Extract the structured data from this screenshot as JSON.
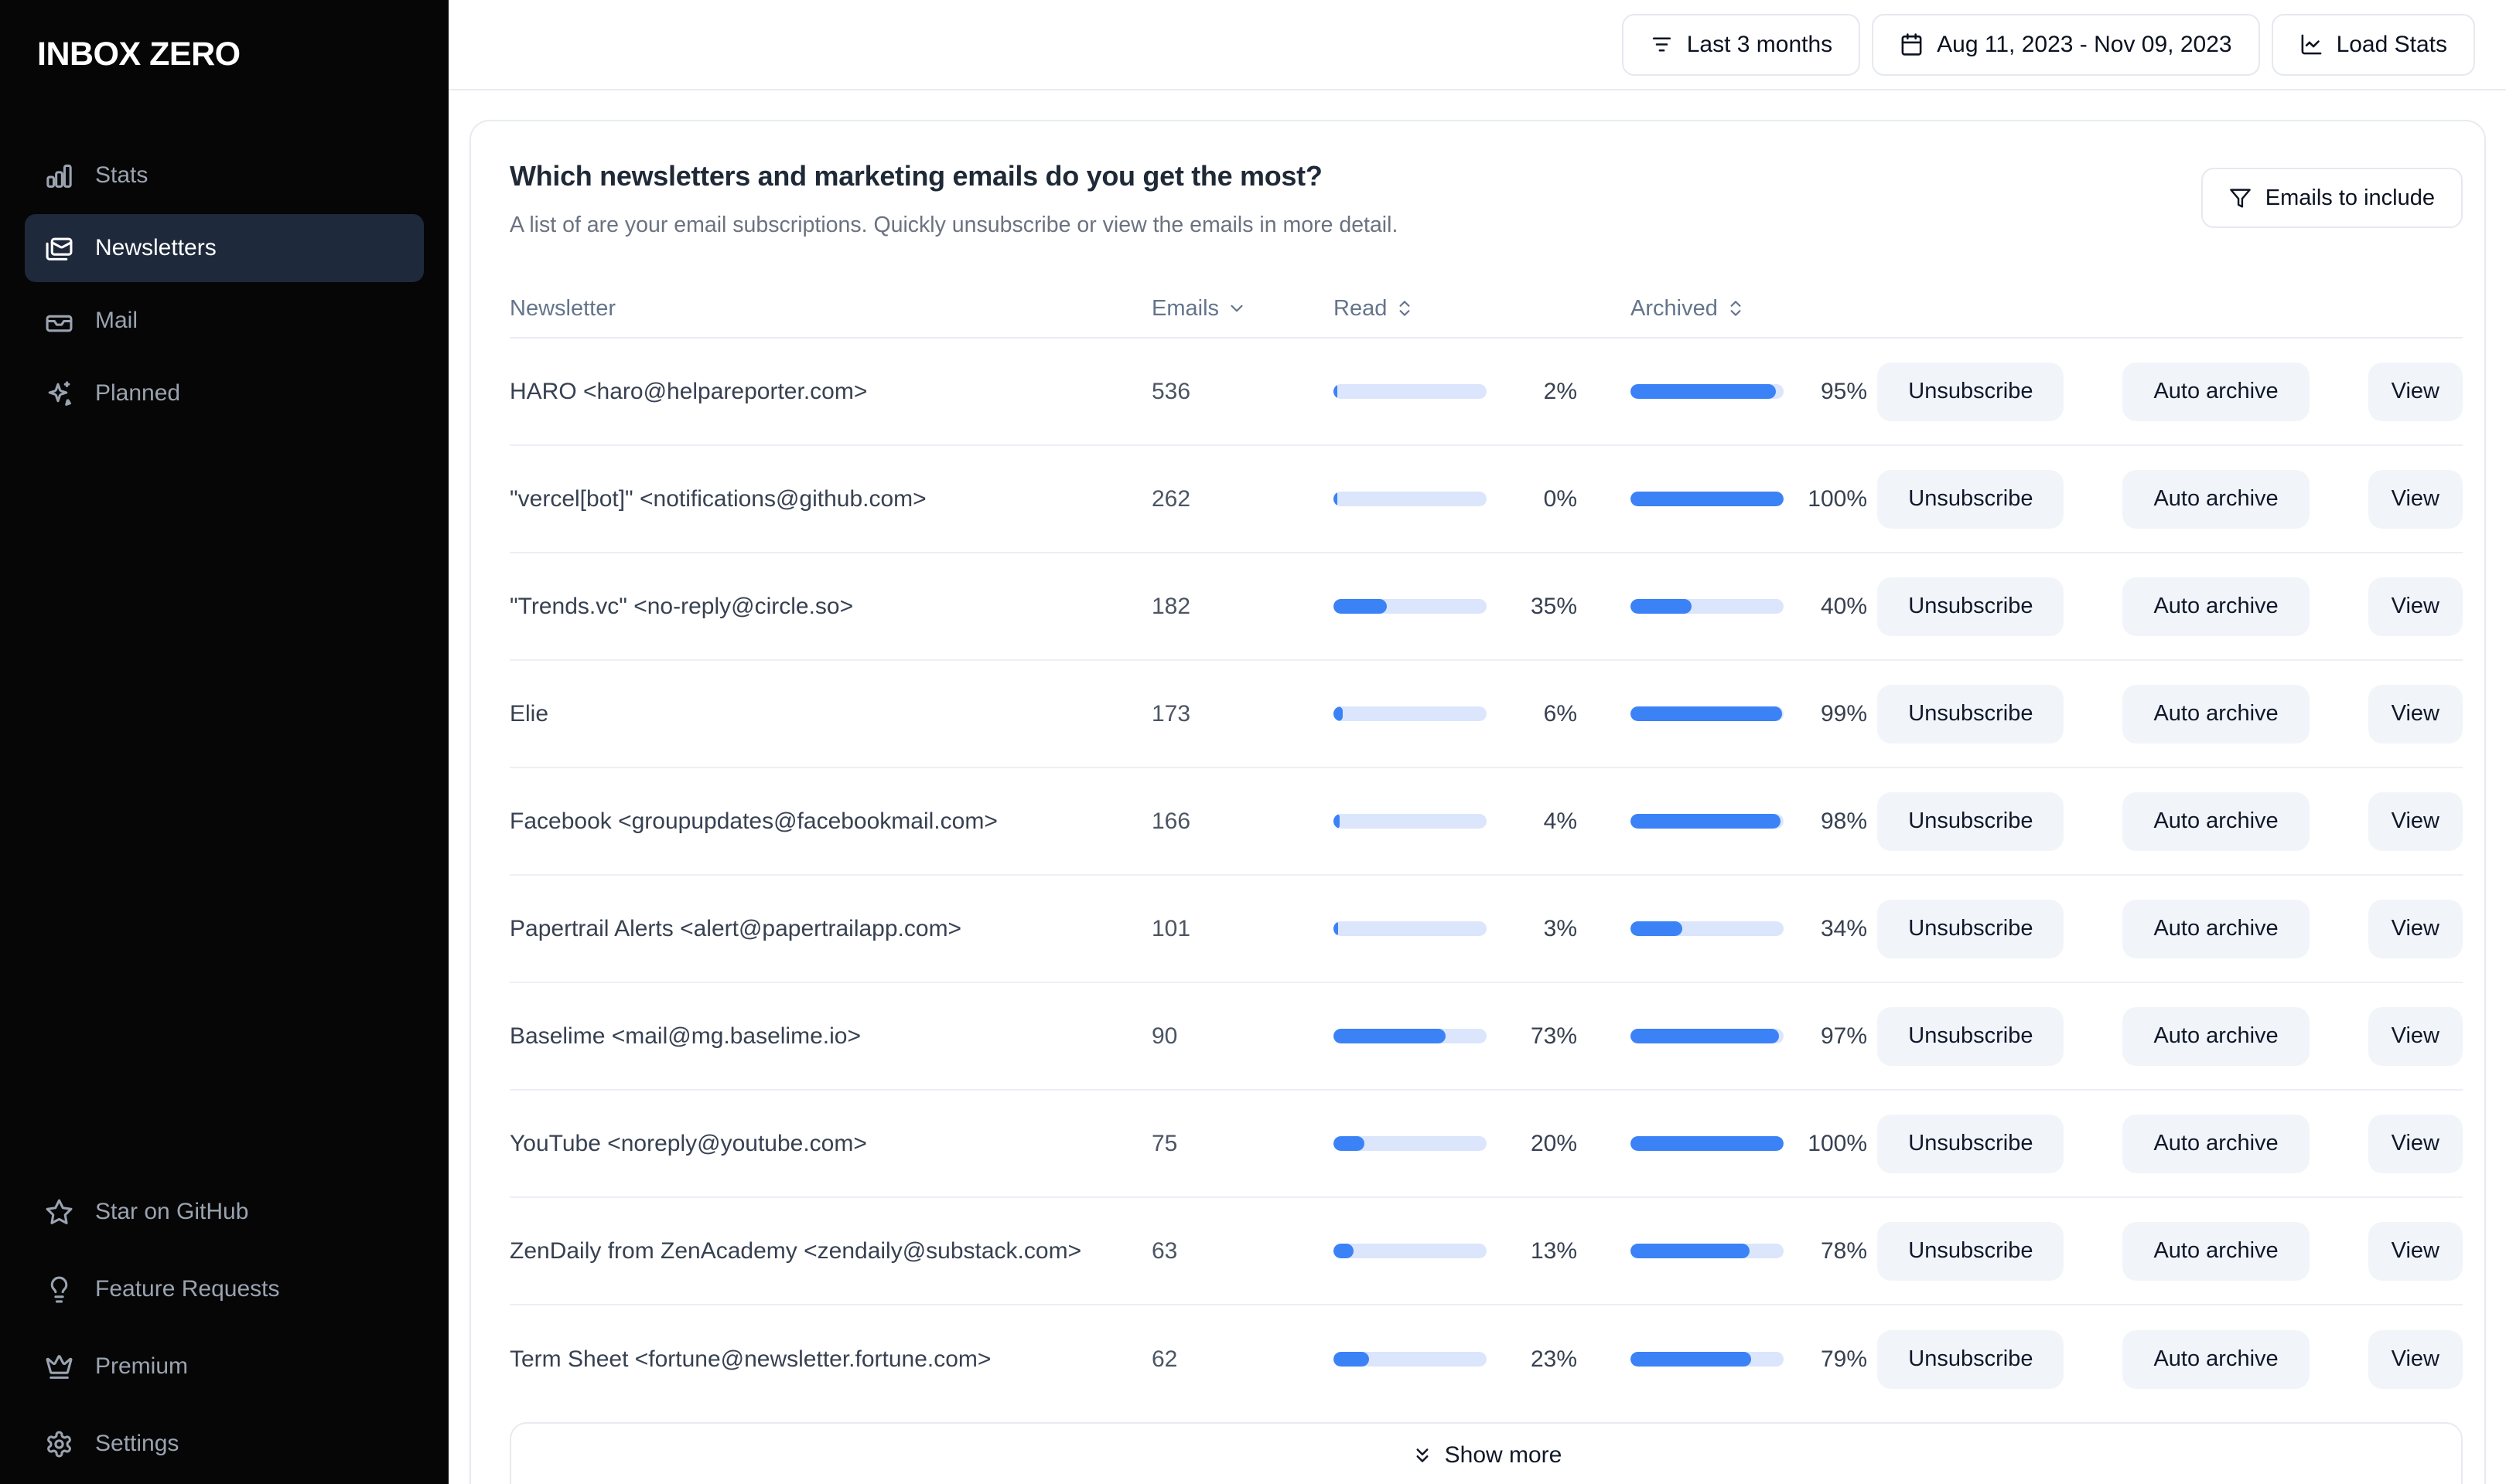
{
  "brand": {
    "logo": "INBOX ZERO"
  },
  "sidebar": {
    "items": [
      {
        "label": "Stats",
        "icon": "bar-chart-icon",
        "active": false
      },
      {
        "label": "Newsletters",
        "icon": "mails-icon",
        "active": true
      },
      {
        "label": "Mail",
        "icon": "inbox-icon",
        "active": false
      },
      {
        "label": "Planned",
        "icon": "sparkles-icon",
        "active": false
      }
    ],
    "footer_items": [
      {
        "label": "Star on GitHub",
        "icon": "star-icon"
      },
      {
        "label": "Feature Requests",
        "icon": "lightbulb-icon"
      },
      {
        "label": "Premium",
        "icon": "crown-icon"
      },
      {
        "label": "Settings",
        "icon": "gear-icon"
      }
    ]
  },
  "topbar": {
    "range_button": "Last 3 months",
    "date_button": "Aug 11, 2023 - Nov 09, 2023",
    "load_stats_button": "Load Stats"
  },
  "main": {
    "title": "Which newsletters and marketing emails do you get the most?",
    "subtitle": "A list of are your email subscriptions. Quickly unsubscribe or view the emails in more detail.",
    "filter_button": "Emails to include",
    "table": {
      "headers": {
        "newsletter": "Newsletter",
        "emails": "Emails",
        "read": "Read",
        "archived": "Archived"
      },
      "actions": [
        "Unsubscribe",
        "Auto archive",
        "View"
      ],
      "rows": [
        {
          "name": "HARO <haro@helpareporter.com>",
          "emails": 536,
          "read_pct": 2,
          "archived_pct": 95
        },
        {
          "name": "\"vercel[bot]\" <notifications@github.com>",
          "emails": 262,
          "read_pct": 0,
          "archived_pct": 100
        },
        {
          "name": "\"Trends.vc\" <no-reply@circle.so>",
          "emails": 182,
          "read_pct": 35,
          "archived_pct": 40
        },
        {
          "name": "Elie",
          "emails": 173,
          "read_pct": 6,
          "archived_pct": 99
        },
        {
          "name": "Facebook <groupupdates@facebookmail.com>",
          "emails": 166,
          "read_pct": 4,
          "archived_pct": 98
        },
        {
          "name": "Papertrail Alerts <alert@papertrailapp.com>",
          "emails": 101,
          "read_pct": 3,
          "archived_pct": 34
        },
        {
          "name": "Baselime <mail@mg.baselime.io>",
          "emails": 90,
          "read_pct": 73,
          "archived_pct": 97
        },
        {
          "name": "YouTube <noreply@youtube.com>",
          "emails": 75,
          "read_pct": 20,
          "archived_pct": 100
        },
        {
          "name": "ZenDaily from ZenAcademy <zendaily@substack.com>",
          "emails": 63,
          "read_pct": 13,
          "archived_pct": 78
        },
        {
          "name": "Term Sheet <fortune@newsletter.fortune.com>",
          "emails": 62,
          "read_pct": 23,
          "archived_pct": 79
        }
      ],
      "show_more": "Show more"
    }
  },
  "colors": {
    "sidebar_bg": "#060606",
    "active_item_bg": "#1e293b",
    "bar_fill": "#3b82f6",
    "bar_track": "#dbe5fc",
    "border": "#e7ebf0",
    "action_button_bg": "#f1f5f9"
  }
}
